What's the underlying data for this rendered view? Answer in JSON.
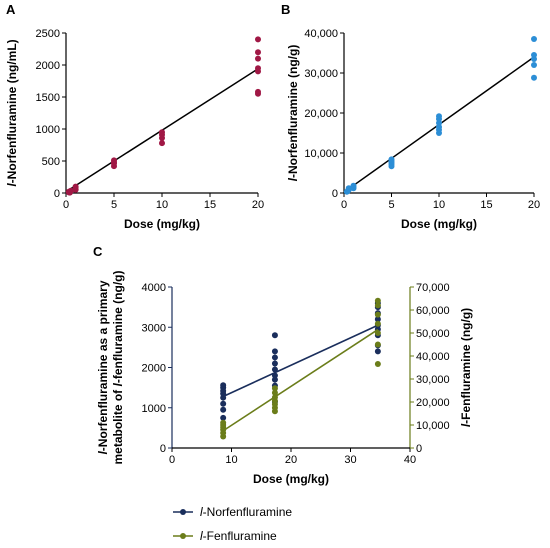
{
  "colors": {
    "panelA": "#a01845",
    "panelB": "#2c8ed6",
    "norfen": "#1a2e5c",
    "fen": "#6b7d1a",
    "axis": "#000000",
    "fit": "#000000"
  },
  "chart_data": [
    {
      "panel": "A",
      "type": "scatter",
      "xlabel": "Dose (mg/kg)",
      "ylabel_italic": "l",
      "ylabel": "-Norfenfluramine (ng/mL)",
      "xlim": [
        0,
        20
      ],
      "ylim": [
        0,
        2500
      ],
      "xticks": [
        "0",
        "5",
        "10",
        "15",
        "20"
      ],
      "yticks": [
        "0",
        "500",
        "1000",
        "1500",
        "2000",
        "2500"
      ],
      "points": [
        {
          "x": 0.3,
          "y": 10
        },
        {
          "x": 0.3,
          "y": 20
        },
        {
          "x": 0.4,
          "y": 5
        },
        {
          "x": 0.5,
          "y": 35
        },
        {
          "x": 1,
          "y": 50
        },
        {
          "x": 1,
          "y": 60
        },
        {
          "x": 1,
          "y": 85
        },
        {
          "x": 1,
          "y": 100
        },
        {
          "x": 5,
          "y": 420
        },
        {
          "x": 5,
          "y": 460
        },
        {
          "x": 5,
          "y": 480
        },
        {
          "x": 5,
          "y": 510
        },
        {
          "x": 10,
          "y": 780
        },
        {
          "x": 10,
          "y": 860
        },
        {
          "x": 10,
          "y": 910
        },
        {
          "x": 10,
          "y": 950
        },
        {
          "x": 20,
          "y": 1550
        },
        {
          "x": 20,
          "y": 1580
        },
        {
          "x": 20,
          "y": 1900
        },
        {
          "x": 20,
          "y": 1950
        },
        {
          "x": 20,
          "y": 2100
        },
        {
          "x": 20,
          "y": 2200
        },
        {
          "x": 20,
          "y": 2400
        }
      ],
      "fit": [
        [
          0,
          20
        ],
        [
          20,
          1940
        ]
      ]
    },
    {
      "panel": "B",
      "type": "scatter",
      "xlabel": "Dose (mg/kg)",
      "ylabel_italic": "l",
      "ylabel": "-Norfenfluramine (ng/g)",
      "xlim": [
        0,
        20
      ],
      "ylim": [
        0,
        40000
      ],
      "xticks": [
        "0",
        "5",
        "10",
        "15",
        "20"
      ],
      "yticks": [
        "0",
        "10,000",
        "20,000",
        "30,000",
        "40,000"
      ],
      "points": [
        {
          "x": 0.3,
          "y": 300
        },
        {
          "x": 0.4,
          "y": 500
        },
        {
          "x": 0.5,
          "y": 800
        },
        {
          "x": 0.5,
          "y": 1200
        },
        {
          "x": 1,
          "y": 1200
        },
        {
          "x": 1,
          "y": 1500
        },
        {
          "x": 1,
          "y": 1800
        },
        {
          "x": 5,
          "y": 6700
        },
        {
          "x": 5,
          "y": 7200
        },
        {
          "x": 5,
          "y": 7600
        },
        {
          "x": 5,
          "y": 8000
        },
        {
          "x": 5,
          "y": 8400
        },
        {
          "x": 10,
          "y": 15000
        },
        {
          "x": 10,
          "y": 15800
        },
        {
          "x": 10,
          "y": 16500
        },
        {
          "x": 10,
          "y": 17500
        },
        {
          "x": 10,
          "y": 18500
        },
        {
          "x": 10,
          "y": 19200
        },
        {
          "x": 20,
          "y": 28800
        },
        {
          "x": 20,
          "y": 32000
        },
        {
          "x": 20,
          "y": 33500
        },
        {
          "x": 20,
          "y": 34500
        },
        {
          "x": 20,
          "y": 38500
        }
      ],
      "fit": [
        [
          0,
          200
        ],
        [
          20,
          34000
        ]
      ]
    },
    {
      "panel": "C",
      "type": "scatter",
      "xlabel": "Dose (mg/kg)",
      "ylabel_line1": "l-Norfenfluramine as a primary",
      "ylabel_line2_italic": "l",
      "ylabel_line2": "metabolite of -fenfluramine (ng/g)",
      "y2label_italic": "l",
      "y2label": "-Fenfluramine (ng/g)",
      "xlim": [
        0,
        40
      ],
      "ylim": [
        0,
        4000
      ],
      "y2lim": [
        0,
        70000
      ],
      "xticks": [
        "0",
        "10",
        "20",
        "30",
        "40"
      ],
      "yticks": [
        "0",
        "1000",
        "2000",
        "3000",
        "4000"
      ],
      "y2ticks": [
        "0",
        "10,000",
        "20,000",
        "30,000",
        "40,000",
        "50,000",
        "60,000",
        "70,000"
      ],
      "series": [
        {
          "name": "-Norfenfluramine",
          "name_italic": "l",
          "axis": "left",
          "points": [
            {
              "x": 8.6,
              "y": 750
            },
            {
              "x": 8.6,
              "y": 950
            },
            {
              "x": 8.6,
              "y": 1100
            },
            {
              "x": 8.6,
              "y": 1250
            },
            {
              "x": 8.6,
              "y": 1350
            },
            {
              "x": 8.6,
              "y": 1420
            },
            {
              "x": 8.6,
              "y": 1500
            },
            {
              "x": 8.6,
              "y": 1560
            },
            {
              "x": 17.3,
              "y": 1150
            },
            {
              "x": 17.3,
              "y": 1550
            },
            {
              "x": 17.3,
              "y": 1700
            },
            {
              "x": 17.3,
              "y": 1800
            },
            {
              "x": 17.3,
              "y": 1950
            },
            {
              "x": 17.3,
              "y": 2100
            },
            {
              "x": 17.3,
              "y": 2250
            },
            {
              "x": 17.3,
              "y": 2400
            },
            {
              "x": 17.3,
              "y": 2800
            },
            {
              "x": 34.6,
              "y": 2400
            },
            {
              "x": 34.6,
              "y": 2550
            },
            {
              "x": 34.6,
              "y": 2800
            },
            {
              "x": 34.6,
              "y": 2950
            },
            {
              "x": 34.6,
              "y": 3050
            },
            {
              "x": 34.6,
              "y": 3200
            },
            {
              "x": 34.6,
              "y": 3350
            },
            {
              "x": 34.6,
              "y": 3500
            },
            {
              "x": 34.6,
              "y": 3600
            }
          ],
          "fit": [
            [
              8.6,
              1280
            ],
            [
              34.6,
              3050
            ]
          ]
        },
        {
          "name": "-Fenfluramine",
          "name_italic": "l",
          "axis": "right",
          "points": [
            {
              "x": 8.6,
              "y": 5000
            },
            {
              "x": 8.6,
              "y": 6500
            },
            {
              "x": 8.6,
              "y": 8000
            },
            {
              "x": 8.6,
              "y": 9000
            },
            {
              "x": 8.6,
              "y": 10000
            },
            {
              "x": 8.6,
              "y": 11000
            },
            {
              "x": 17.3,
              "y": 16000
            },
            {
              "x": 17.3,
              "y": 17500
            },
            {
              "x": 17.3,
              "y": 19000
            },
            {
              "x": 17.3,
              "y": 20500
            },
            {
              "x": 17.3,
              "y": 22000
            },
            {
              "x": 17.3,
              "y": 24000
            },
            {
              "x": 17.3,
              "y": 26000
            },
            {
              "x": 34.6,
              "y": 36500
            },
            {
              "x": 34.6,
              "y": 45000
            },
            {
              "x": 34.6,
              "y": 50000
            },
            {
              "x": 34.6,
              "y": 54000
            },
            {
              "x": 34.6,
              "y": 58000
            },
            {
              "x": 34.6,
              "y": 62000
            },
            {
              "x": 34.6,
              "y": 64000
            }
          ],
          "fit": [
            [
              8.6,
              7500
            ],
            [
              34.6,
              51500
            ]
          ]
        }
      ]
    }
  ]
}
